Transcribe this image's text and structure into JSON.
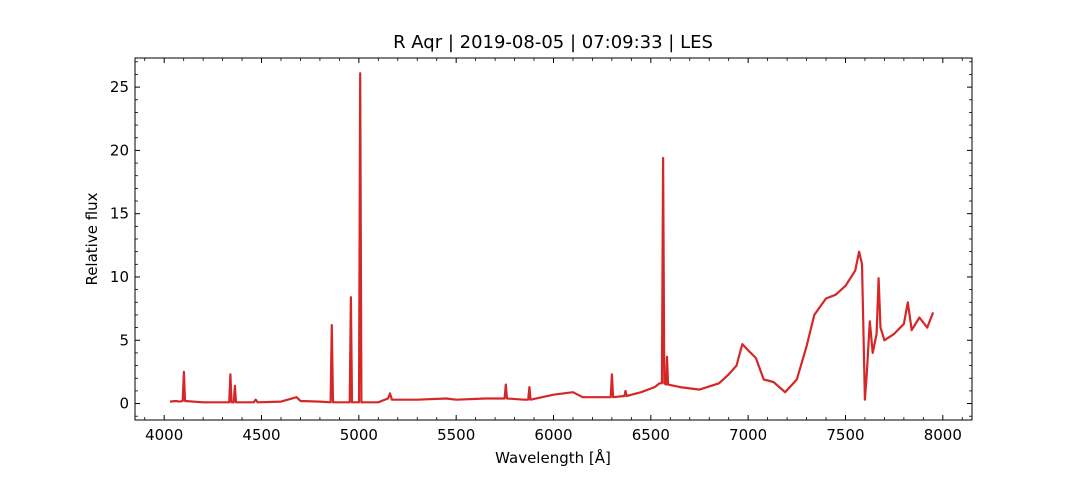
{
  "chart_data": {
    "type": "line",
    "title": "R Aqr | 2019-08-05 | 07:09:33 | LES",
    "xlabel": "Wavelength [Å]",
    "ylabel": "Relative flux",
    "xlim": [
      3850,
      8150
    ],
    "ylim": [
      -1.3,
      27.3
    ],
    "xticks": [
      4000,
      4500,
      5000,
      5500,
      6000,
      6500,
      7000,
      7500,
      8000
    ],
    "yticks": [
      0,
      5,
      10,
      15,
      20,
      25
    ],
    "line_color": "#d62728",
    "grid": false,
    "series": [
      {
        "points": [
          [
            4030,
            0.15
          ],
          [
            4060,
            0.2
          ],
          [
            4075,
            0.15
          ],
          [
            4095,
            0.2
          ],
          [
            4101,
            2.5
          ],
          [
            4107,
            0.2
          ],
          [
            4200,
            0.1
          ],
          [
            4300,
            0.1
          ],
          [
            4334,
            0.1
          ],
          [
            4340,
            2.3
          ],
          [
            4346,
            0.1
          ],
          [
            4357,
            0.1
          ],
          [
            4363,
            1.4
          ],
          [
            4369,
            0.1
          ],
          [
            4460,
            0.1
          ],
          [
            4470,
            0.3
          ],
          [
            4480,
            0.1
          ],
          [
            4600,
            0.15
          ],
          [
            4680,
            0.5
          ],
          [
            4700,
            0.2
          ],
          [
            4800,
            0.15
          ],
          [
            4855,
            0.1
          ],
          [
            4861,
            6.2
          ],
          [
            4867,
            0.1
          ],
          [
            4953,
            0.1
          ],
          [
            4959,
            8.4
          ],
          [
            4965,
            0.1
          ],
          [
            5001,
            0.1
          ],
          [
            5007,
            26.1
          ],
          [
            5013,
            0.1
          ],
          [
            5100,
            0.1
          ],
          [
            5150,
            0.4
          ],
          [
            5160,
            0.8
          ],
          [
            5170,
            0.3
          ],
          [
            5300,
            0.3
          ],
          [
            5450,
            0.4
          ],
          [
            5500,
            0.3
          ],
          [
            5650,
            0.4
          ],
          [
            5749,
            0.4
          ],
          [
            5755,
            1.5
          ],
          [
            5761,
            0.4
          ],
          [
            5850,
            0.3
          ],
          [
            5870,
            0.3
          ],
          [
            5876,
            1.3
          ],
          [
            5882,
            0.3
          ],
          [
            6000,
            0.7
          ],
          [
            6100,
            0.9
          ],
          [
            6150,
            0.5
          ],
          [
            6250,
            0.5
          ],
          [
            6294,
            0.5
          ],
          [
            6300,
            2.3
          ],
          [
            6306,
            0.5
          ],
          [
            6364,
            0.6
          ],
          [
            6370,
            1.0
          ],
          [
            6376,
            0.6
          ],
          [
            6450,
            0.9
          ],
          [
            6520,
            1.3
          ],
          [
            6545,
            1.6
          ],
          [
            6557,
            1.6
          ],
          [
            6563,
            19.4
          ],
          [
            6569,
            1.6
          ],
          [
            6578,
            1.5
          ],
          [
            6583,
            3.7
          ],
          [
            6589,
            1.5
          ],
          [
            6650,
            1.3
          ],
          [
            6750,
            1.1
          ],
          [
            6850,
            1.6
          ],
          [
            6900,
            2.3
          ],
          [
            6940,
            3.0
          ],
          [
            6970,
            4.7
          ],
          [
            7000,
            4.2
          ],
          [
            7040,
            3.6
          ],
          [
            7080,
            1.9
          ],
          [
            7130,
            1.7
          ],
          [
            7190,
            0.9
          ],
          [
            7250,
            1.9
          ],
          [
            7300,
            4.5
          ],
          [
            7340,
            7.0
          ],
          [
            7400,
            8.3
          ],
          [
            7450,
            8.6
          ],
          [
            7500,
            9.3
          ],
          [
            7550,
            10.5
          ],
          [
            7570,
            12.0
          ],
          [
            7585,
            11.0
          ],
          [
            7600,
            0.3
          ],
          [
            7610,
            2.5
          ],
          [
            7625,
            6.5
          ],
          [
            7640,
            4.0
          ],
          [
            7660,
            5.5
          ],
          [
            7670,
            9.9
          ],
          [
            7680,
            6.0
          ],
          [
            7700,
            5.0
          ],
          [
            7750,
            5.5
          ],
          [
            7800,
            6.3
          ],
          [
            7820,
            8.0
          ],
          [
            7840,
            5.8
          ],
          [
            7880,
            6.8
          ],
          [
            7920,
            6.0
          ],
          [
            7950,
            7.2
          ]
        ]
      }
    ]
  }
}
